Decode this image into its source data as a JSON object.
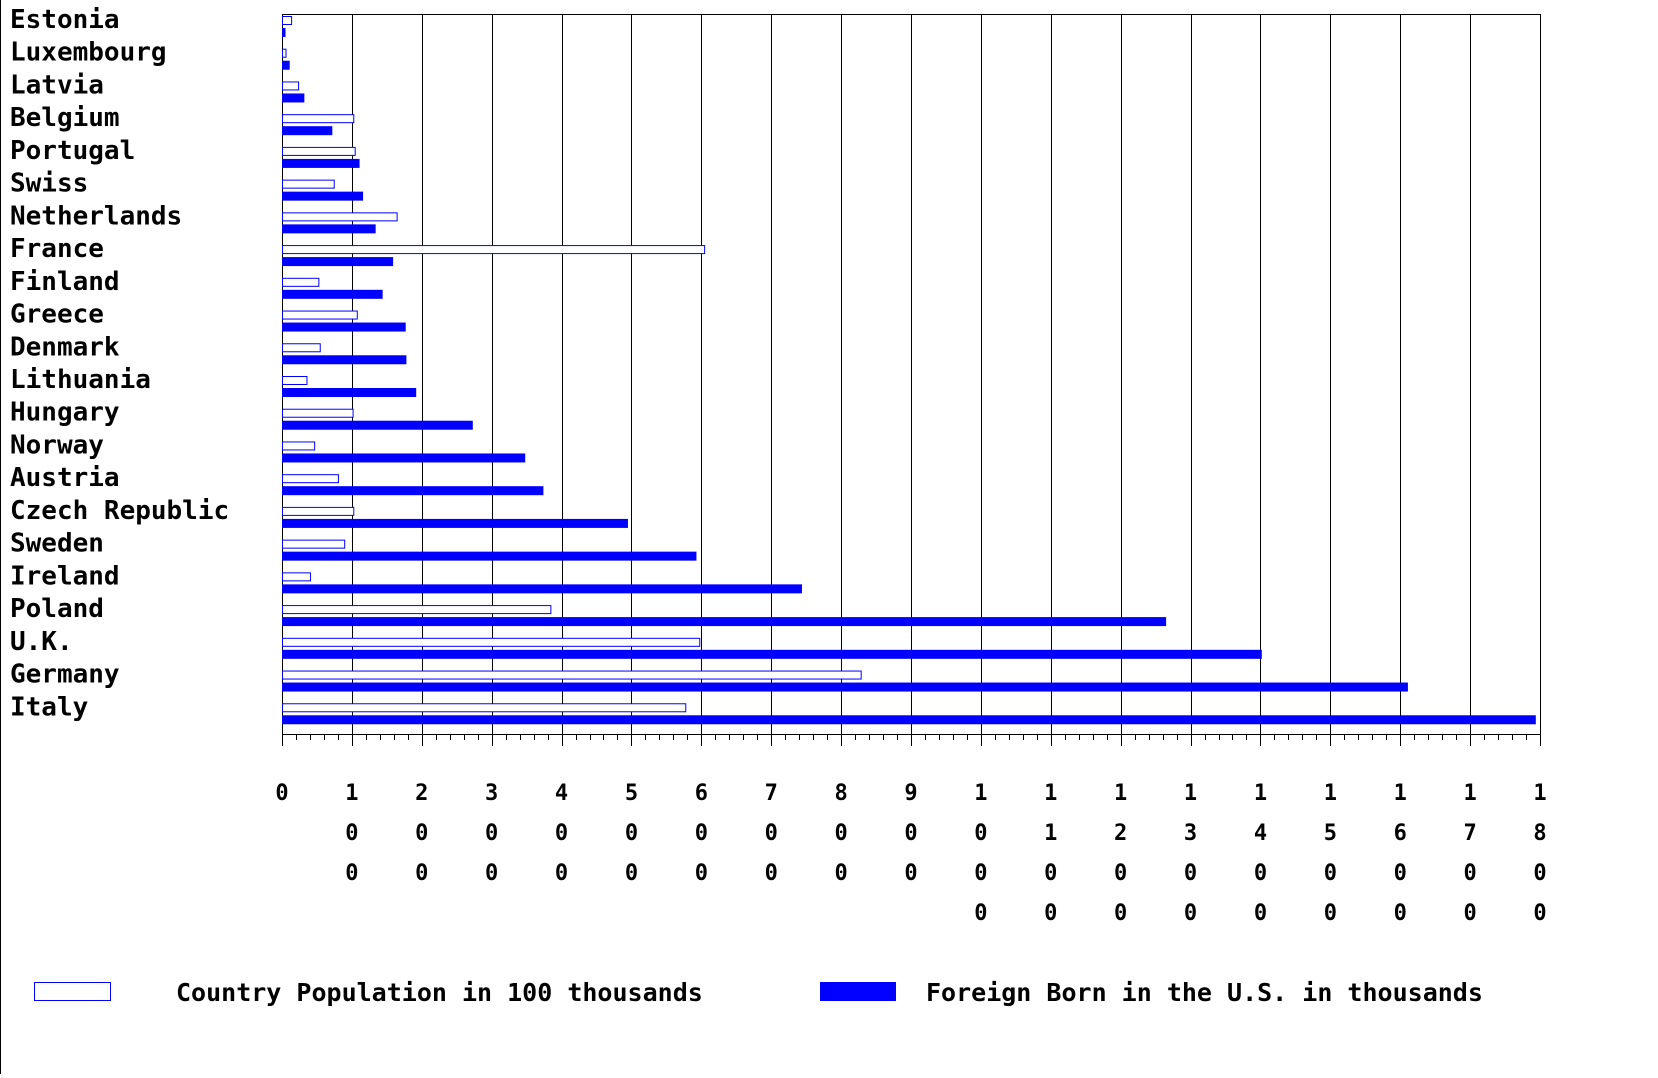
{
  "chart_data": {
    "type": "bar",
    "orientation": "horizontal",
    "categories": [
      "Estonia",
      "Luxembourg",
      "Latvia",
      "Belgium",
      "Portugal",
      "Swiss",
      "Netherlands",
      "France",
      "Finland",
      "Greece",
      "Denmark",
      "Lithuania",
      "Hungary",
      "Norway",
      "Austria",
      "Czech Republic",
      "Sweden",
      "Ireland",
      "Poland",
      "U.K.",
      "Germany",
      "Italy"
    ],
    "series": [
      {
        "name": "Country Population in 100 thousands",
        "style": "outline",
        "color": "#0000ff",
        "values": [
          13,
          5,
          23,
          102,
          104,
          74,
          164,
          604,
          52,
          107,
          54,
          35,
          101,
          46,
          80,
          102,
          89,
          40,
          384,
          597,
          828,
          577
        ]
      },
      {
        "name": "Foreign Born in the U.S. in thousands",
        "style": "filled",
        "color": "#0000ff",
        "values": [
          5,
          11,
          32,
          72,
          111,
          116,
          134,
          159,
          144,
          177,
          178,
          192,
          273,
          348,
          374,
          495,
          593,
          744,
          1265,
          1402,
          1611,
          1794
        ]
      }
    ],
    "xlim": [
      0,
      1800
    ],
    "xticks": [
      0,
      100,
      200,
      300,
      400,
      500,
      600,
      700,
      800,
      900,
      1000,
      1100,
      1200,
      1300,
      1400,
      1500,
      1600,
      1700,
      1800
    ],
    "xtick_labels": [
      "0",
      "100",
      "200",
      "300",
      "400",
      "500",
      "600",
      "700",
      "800",
      "900",
      "1000",
      "1100",
      "1200",
      "1300",
      "1400",
      "1500",
      "1600",
      "1700",
      "1800"
    ],
    "grid": true,
    "legend_position": "bottom",
    "title": "",
    "xlabel": "",
    "ylabel": ""
  }
}
